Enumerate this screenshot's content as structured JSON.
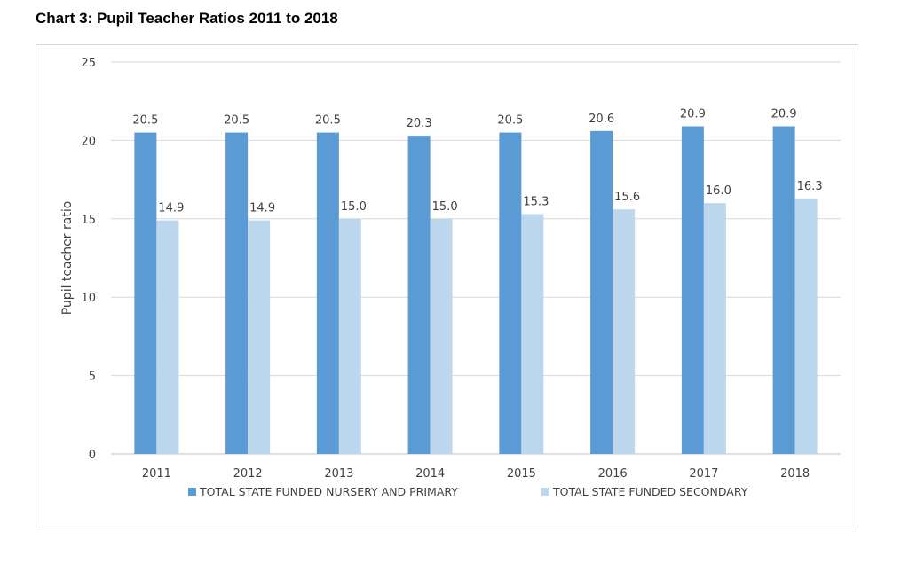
{
  "title": "Chart 3: Pupil Teacher Ratios 2011 to 2018",
  "chart_data": {
    "type": "bar",
    "title": "",
    "xlabel": "",
    "ylabel": "Pupil teacher ratio",
    "ylim": [
      0,
      25
    ],
    "yticks": [
      0,
      5,
      10,
      15,
      20,
      25
    ],
    "grid": true,
    "legend_position": "bottom",
    "categories": [
      "2011",
      "2012",
      "2013",
      "2014",
      "2015",
      "2016",
      "2017",
      "2018"
    ],
    "series": [
      {
        "name": "TOTAL STATE FUNDED NURSERY AND PRIMARY",
        "color": "#5b9bd5",
        "values": [
          20.5,
          20.5,
          20.5,
          20.3,
          20.5,
          20.6,
          20.9,
          20.9
        ],
        "labels": [
          "20.5",
          "20.5",
          "20.5",
          "20.3",
          "20.5",
          "20.6",
          "20.9",
          "20.9"
        ]
      },
      {
        "name": "TOTAL STATE FUNDED SECONDARY",
        "color": "#bdd7ee",
        "values": [
          14.9,
          14.9,
          15.0,
          15.0,
          15.3,
          15.6,
          16.0,
          16.3
        ],
        "labels": [
          "14.9",
          "14.9",
          "15.0",
          "15.0",
          "15.3",
          "15.6",
          "16.0",
          "16.3"
        ]
      }
    ]
  }
}
